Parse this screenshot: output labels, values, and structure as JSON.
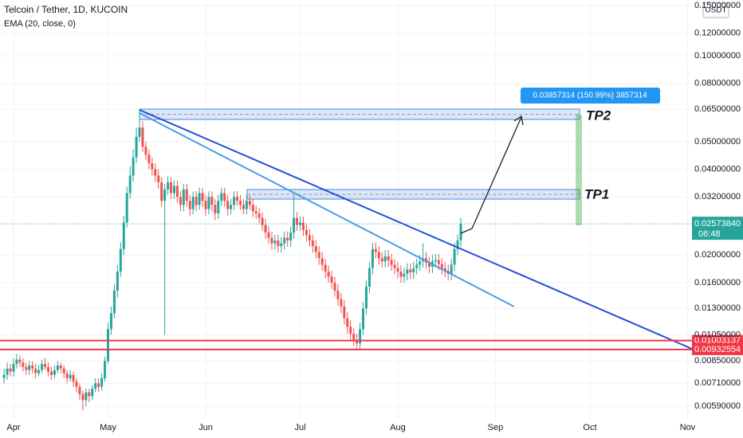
{
  "chart_data": {
    "type": "candlestick",
    "title": "Telcoin / Tether, 1D, KUCOIN",
    "indicator": "EMA (20, close, 0)",
    "currency": "USDT",
    "log_scale": true,
    "grid": true,
    "up_color": "#26a69a",
    "down_color": "#ef5350",
    "open": [
      0.0074,
      0.0076,
      0.008,
      0.0078,
      0.0083,
      0.0086,
      0.0084,
      0.0081,
      0.0079,
      0.0082,
      0.008,
      0.0077,
      0.0079,
      0.0083,
      0.0081,
      0.0078,
      0.0076,
      0.0079,
      0.0082,
      0.008,
      0.0077,
      0.0074,
      0.0076,
      0.0072,
      0.0069,
      0.0065,
      0.0062,
      0.0066,
      0.0064,
      0.0068,
      0.0071,
      0.0069,
      0.0074,
      0.0085,
      0.011,
      0.0125,
      0.015,
      0.0175,
      0.021,
      0.026,
      0.033,
      0.038,
      0.044,
      0.052,
      0.056,
      0.048,
      0.045,
      0.042,
      0.04,
      0.038,
      0.036,
      0.031,
      0.034,
      0.036,
      0.033,
      0.035,
      0.032,
      0.03,
      0.034,
      0.031,
      0.029,
      0.032,
      0.03,
      0.033,
      0.031,
      0.029,
      0.032,
      0.03,
      0.028,
      0.031,
      0.033,
      0.031,
      0.029,
      0.03,
      0.032,
      0.031,
      0.03,
      0.029,
      0.031,
      0.03,
      0.0285,
      0.028,
      0.027,
      0.0255,
      0.024,
      0.023,
      0.022,
      0.0225,
      0.0215,
      0.022,
      0.023,
      0.0225,
      0.024,
      0.027,
      0.0255,
      0.026,
      0.0245,
      0.0235,
      0.0225,
      0.0215,
      0.0205,
      0.0195,
      0.0185,
      0.0175,
      0.0168,
      0.016,
      0.015,
      0.014,
      0.0132,
      0.012,
      0.0112,
      0.0106,
      0.0101,
      0.0098,
      0.011,
      0.013,
      0.0155,
      0.018,
      0.021,
      0.0205,
      0.0195,
      0.019,
      0.0198,
      0.0192,
      0.0185,
      0.018,
      0.0175,
      0.0168,
      0.0172,
      0.0178,
      0.0174,
      0.018,
      0.0185,
      0.019,
      0.0195,
      0.0188,
      0.0182,
      0.019,
      0.0192,
      0.0186,
      0.018,
      0.0176,
      0.0172,
      0.0185,
      0.021,
      0.0225
    ],
    "high": [
      0.008,
      0.0084,
      0.0083,
      0.0087,
      0.009,
      0.0089,
      0.0087,
      0.0084,
      0.0085,
      0.0085,
      0.0083,
      0.0082,
      0.0086,
      0.0087,
      0.0084,
      0.0081,
      0.0082,
      0.0085,
      0.0084,
      0.0082,
      0.0079,
      0.0079,
      0.0078,
      0.0074,
      0.0071,
      0.0067,
      0.0068,
      0.0068,
      0.007,
      0.0074,
      0.0074,
      0.0077,
      0.0088,
      0.0116,
      0.0132,
      0.0158,
      0.0185,
      0.0222,
      0.0275,
      0.0348,
      0.041,
      0.047,
      0.056,
      0.065,
      0.059,
      0.05,
      0.047,
      0.044,
      0.042,
      0.04,
      0.0375,
      0.0355,
      0.0378,
      0.0375,
      0.0365,
      0.0365,
      0.0335,
      0.0355,
      0.0355,
      0.0325,
      0.0335,
      0.0335,
      0.0345,
      0.0345,
      0.0325,
      0.0335,
      0.0335,
      0.0315,
      0.0325,
      0.0345,
      0.0345,
      0.0325,
      0.0315,
      0.0335,
      0.0335,
      0.0325,
      0.0315,
      0.0325,
      0.0325,
      0.0315,
      0.0298,
      0.0293,
      0.0283,
      0.0268,
      0.0252,
      0.0242,
      0.0236,
      0.0236,
      0.0231,
      0.0242,
      0.0242,
      0.0252,
      0.0325,
      0.0283,
      0.0273,
      0.0273,
      0.0257,
      0.0247,
      0.0236,
      0.0226,
      0.0215,
      0.0205,
      0.0194,
      0.0184,
      0.0176,
      0.0168,
      0.0158,
      0.0147,
      0.0139,
      0.0126,
      0.0118,
      0.0111,
      0.0106,
      0.0116,
      0.0137,
      0.0163,
      0.0189,
      0.0221,
      0.0221,
      0.0215,
      0.0205,
      0.0208,
      0.0208,
      0.0202,
      0.0194,
      0.0189,
      0.0184,
      0.0181,
      0.0187,
      0.0187,
      0.0189,
      0.0194,
      0.02,
      0.022,
      0.0205,
      0.0197,
      0.02,
      0.0202,
      0.0202,
      0.0195,
      0.0189,
      0.0185,
      0.0194,
      0.0221,
      0.0236,
      0.027
    ],
    "low": [
      0.0071,
      0.0073,
      0.0075,
      0.0075,
      0.008,
      0.0081,
      0.0078,
      0.0076,
      0.0076,
      0.0077,
      0.0074,
      0.0075,
      0.0077,
      0.0079,
      0.0075,
      0.0073,
      0.0074,
      0.0077,
      0.0077,
      0.0074,
      0.0071,
      0.0072,
      0.0069,
      0.0066,
      0.0062,
      0.0057,
      0.0059,
      0.0061,
      0.0062,
      0.0066,
      0.0066,
      0.0067,
      0.0072,
      0.0083,
      0.0105,
      0.012,
      0.0142,
      0.0168,
      0.02,
      0.025,
      0.0315,
      0.0362,
      0.042,
      0.05,
      0.046,
      0.043,
      0.04,
      0.038,
      0.0362,
      0.0342,
      0.0295,
      0.0105,
      0.0325,
      0.0315,
      0.0315,
      0.0305,
      0.0285,
      0.0285,
      0.0295,
      0.0275,
      0.0278,
      0.0285,
      0.0288,
      0.0295,
      0.0275,
      0.0278,
      0.0285,
      0.0265,
      0.0268,
      0.0298,
      0.0295,
      0.0275,
      0.0278,
      0.0288,
      0.0298,
      0.0288,
      0.0278,
      0.0278,
      0.0288,
      0.0272,
      0.0268,
      0.0258,
      0.0243,
      0.0228,
      0.0219,
      0.0209,
      0.0209,
      0.0204,
      0.0204,
      0.0209,
      0.0214,
      0.0214,
      0.0228,
      0.0243,
      0.0243,
      0.0233,
      0.0223,
      0.0214,
      0.0204,
      0.0195,
      0.0185,
      0.0176,
      0.0166,
      0.016,
      0.0152,
      0.0143,
      0.0133,
      0.0125,
      0.0114,
      0.0106,
      0.0101,
      0.0096,
      0.0094,
      0.0094,
      0.0105,
      0.0124,
      0.0147,
      0.0171,
      0.0195,
      0.0185,
      0.0181,
      0.0181,
      0.0182,
      0.0176,
      0.0171,
      0.0166,
      0.016,
      0.016,
      0.0163,
      0.0165,
      0.0165,
      0.0171,
      0.0176,
      0.0181,
      0.0179,
      0.0173,
      0.0173,
      0.0181,
      0.0177,
      0.0171,
      0.0167,
      0.0163,
      0.0163,
      0.0176,
      0.02,
      0.0214
    ],
    "close": [
      0.0076,
      0.008,
      0.0078,
      0.0083,
      0.0086,
      0.0084,
      0.0081,
      0.0079,
      0.0082,
      0.008,
      0.0077,
      0.0079,
      0.0083,
      0.0081,
      0.0078,
      0.0076,
      0.0079,
      0.0082,
      0.008,
      0.0077,
      0.0074,
      0.0076,
      0.0072,
      0.0069,
      0.0065,
      0.0062,
      0.0066,
      0.0064,
      0.0068,
      0.0071,
      0.0069,
      0.0074,
      0.0085,
      0.011,
      0.0125,
      0.015,
      0.0175,
      0.021,
      0.026,
      0.033,
      0.038,
      0.044,
      0.052,
      0.056,
      0.048,
      0.045,
      0.042,
      0.04,
      0.038,
      0.036,
      0.031,
      0.034,
      0.036,
      0.033,
      0.035,
      0.032,
      0.03,
      0.034,
      0.031,
      0.029,
      0.032,
      0.03,
      0.033,
      0.031,
      0.029,
      0.032,
      0.03,
      0.028,
      0.031,
      0.033,
      0.031,
      0.029,
      0.03,
      0.032,
      0.031,
      0.03,
      0.029,
      0.031,
      0.03,
      0.0285,
      0.028,
      0.027,
      0.0255,
      0.024,
      0.023,
      0.022,
      0.0225,
      0.0215,
      0.022,
      0.023,
      0.0225,
      0.024,
      0.027,
      0.0255,
      0.026,
      0.0245,
      0.0235,
      0.0225,
      0.0215,
      0.0205,
      0.0195,
      0.0185,
      0.0175,
      0.0168,
      0.016,
      0.015,
      0.014,
      0.0132,
      0.012,
      0.0112,
      0.0106,
      0.0101,
      0.0098,
      0.011,
      0.013,
      0.0155,
      0.018,
      0.021,
      0.0205,
      0.0195,
      0.019,
      0.0198,
      0.0192,
      0.0185,
      0.018,
      0.0175,
      0.0168,
      0.0172,
      0.0178,
      0.0174,
      0.018,
      0.0185,
      0.019,
      0.0195,
      0.0188,
      0.0182,
      0.019,
      0.0192,
      0.0186,
      0.018,
      0.0176,
      0.0172,
      0.0185,
      0.021,
      0.0225,
      0.02574
    ],
    "xlim": [
      -1.3,
      218.4
    ],
    "xticks": [
      {
        "value": 3,
        "label": "Apr"
      },
      {
        "value": 33,
        "label": "May"
      },
      {
        "value": 64,
        "label": "Jun"
      },
      {
        "value": 94,
        "label": "Jul"
      },
      {
        "value": 125,
        "label": "Aug"
      },
      {
        "value": 156,
        "label": "Sep"
      },
      {
        "value": 186,
        "label": "Oct"
      },
      {
        "value": 217,
        "label": "Nov"
      }
    ],
    "ylim": [
      0.00536,
      0.157
    ],
    "yticks": [
      {
        "value": 0.15,
        "label": "0.15000000"
      },
      {
        "value": 0.12,
        "label": "0.12000000"
      },
      {
        "value": 0.1,
        "label": "0.10000000"
      },
      {
        "value": 0.08,
        "label": "0.08000000"
      },
      {
        "value": 0.065,
        "label": "0.06500000"
      },
      {
        "value": 0.05,
        "label": "0.05000000"
      },
      {
        "value": 0.04,
        "label": "0.04000000"
      },
      {
        "value": 0.032,
        "label": "0.03200000"
      },
      {
        "value": 0.02,
        "label": "0.02000000"
      },
      {
        "value": 0.016,
        "label": "0.01600000"
      },
      {
        "value": 0.013,
        "label": "0.01300000"
      },
      {
        "value": 0.0105,
        "label": "0.01050000"
      },
      {
        "value": 0.0085,
        "label": "0.00850000"
      },
      {
        "value": 0.0071,
        "label": "0.00710000"
      },
      {
        "value": 0.0059,
        "label": "0.00590000"
      }
    ],
    "levels": [
      {
        "value": 0.01003137,
        "label": "0.01003137"
      },
      {
        "value": 0.00932554,
        "label": "0.00932554"
      }
    ],
    "last_price": {
      "value": 0.0257384,
      "label": "0.02573840",
      "countdown": "06:48"
    },
    "annotations": {
      "measure": "0.03857314 (150.99%) 3857314",
      "tp1": "TP1",
      "tp2": "TP2"
    }
  }
}
